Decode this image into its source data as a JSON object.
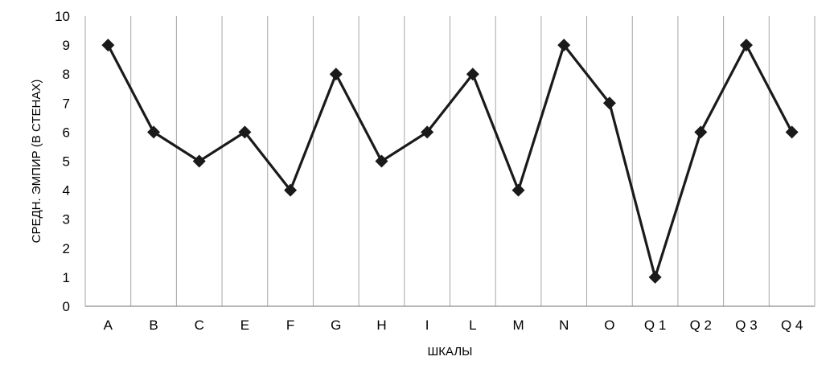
{
  "chart_data": {
    "type": "line",
    "categories": [
      "A",
      "B",
      "C",
      "E",
      "F",
      "G",
      "H",
      "I",
      "L",
      "M",
      "N",
      "O",
      "Q 1",
      "Q 2",
      "Q 3",
      "Q 4"
    ],
    "values": [
      9,
      6,
      5,
      6,
      4,
      8,
      5,
      6,
      8,
      4,
      9,
      7,
      1,
      6,
      9,
      6
    ],
    "xlabel": "ШКАЛЫ",
    "ylabel": "СРЕДН. ЭМПИР (В СТЕНАХ)",
    "ylim": [
      0,
      10
    ],
    "yticks": [
      "0",
      "1",
      "2",
      "3",
      "4",
      "5",
      "6",
      "7",
      "8",
      "9",
      "10"
    ],
    "grid": "vertical",
    "legend": "none",
    "marker": "diamond",
    "colors": {
      "line": "#1a1a1a",
      "grid": "#a6a6a6",
      "axis": "#8c8c8c"
    }
  }
}
